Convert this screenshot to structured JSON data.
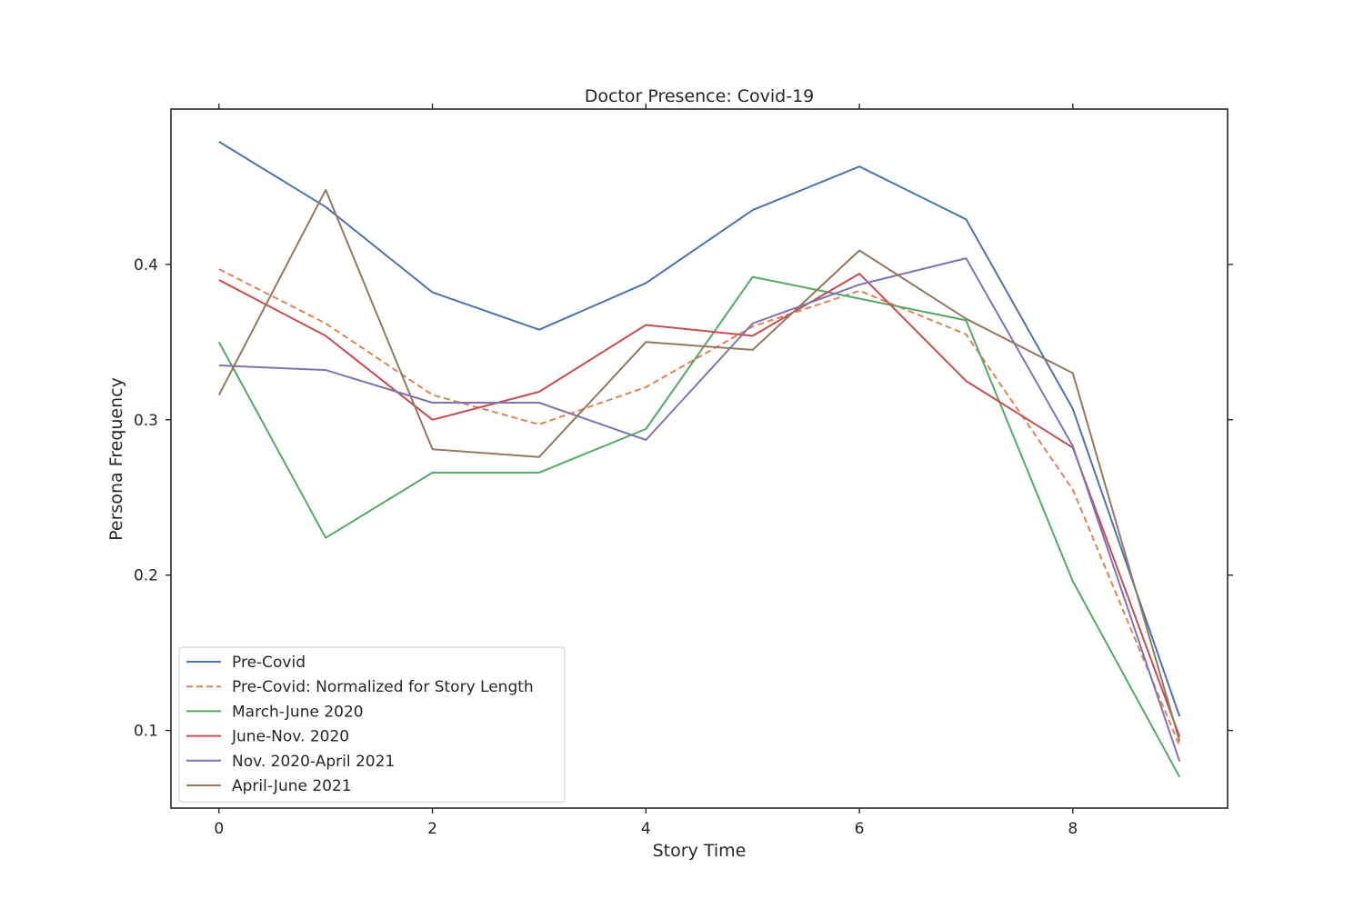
{
  "chart_data": {
    "type": "line",
    "title": "Doctor Presence: Covid-19",
    "xlabel": "Story Time",
    "ylabel": "Persona Frequency",
    "xlim": [
      -0.45,
      9.45
    ],
    "ylim": [
      0.05,
      0.5
    ],
    "x": [
      0,
      1,
      2,
      3,
      4,
      5,
      6,
      7,
      8,
      9
    ],
    "xticks": [
      0,
      2,
      4,
      6,
      8
    ],
    "xtick_labels": [
      "0",
      "2",
      "4",
      "6",
      "8"
    ],
    "yticks": [
      0.1,
      0.2,
      0.3,
      0.4
    ],
    "ytick_labels": [
      "0.1",
      "0.2",
      "0.3",
      "0.4"
    ],
    "grid": false,
    "legend_position": "lower-left",
    "series": [
      {
        "name": "Pre-Covid",
        "color": "#4c72b0",
        "dashed": false,
        "values": [
          0.479,
          0.437,
          0.382,
          0.358,
          0.388,
          0.435,
          0.463,
          0.429,
          0.307,
          0.109
        ]
      },
      {
        "name": "Pre-Covid: Normalized for Story Length",
        "color": "#dd8452",
        "dashed": true,
        "values": [
          0.397,
          0.362,
          0.316,
          0.297,
          0.321,
          0.36,
          0.383,
          0.355,
          0.255,
          0.09
        ]
      },
      {
        "name": "March-June 2020",
        "color": "#55a868",
        "dashed": false,
        "values": [
          0.35,
          0.224,
          0.266,
          0.266,
          0.294,
          0.392,
          0.378,
          0.364,
          0.196,
          0.07
        ]
      },
      {
        "name": "June-Nov. 2020",
        "color": "#c44e52",
        "dashed": false,
        "values": [
          0.39,
          0.354,
          0.3,
          0.318,
          0.361,
          0.354,
          0.394,
          0.325,
          0.282,
          0.096
        ]
      },
      {
        "name": "Nov. 2020-April 2021",
        "color": "#8172b3",
        "dashed": false,
        "values": [
          0.335,
          0.332,
          0.311,
          0.311,
          0.287,
          0.362,
          0.387,
          0.404,
          0.283,
          0.08
        ]
      },
      {
        "name": "April-June 2021",
        "color": "#937860",
        "dashed": false,
        "values": [
          0.316,
          0.448,
          0.281,
          0.276,
          0.35,
          0.345,
          0.409,
          0.365,
          0.33,
          0.093
        ]
      }
    ]
  }
}
